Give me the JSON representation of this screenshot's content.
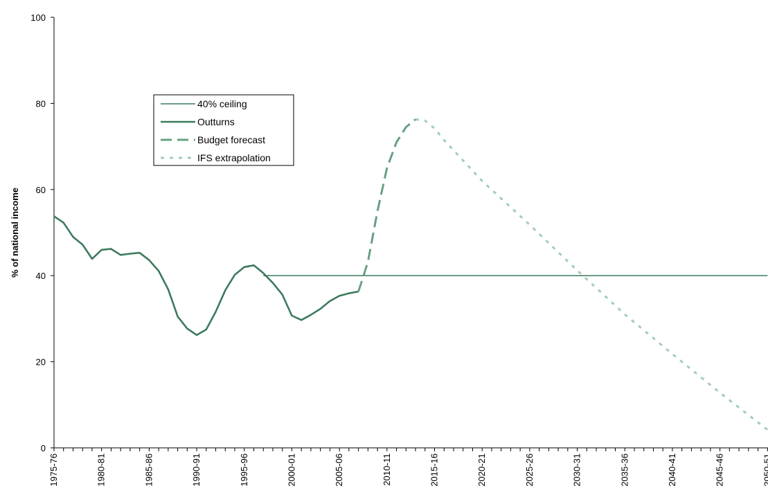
{
  "chart_data": {
    "type": "line",
    "title": "",
    "xlabel": "",
    "ylabel": "% of national income",
    "ylim": [
      0,
      100
    ],
    "yticks": [
      0,
      20,
      40,
      60,
      80,
      100
    ],
    "grid": false,
    "legend_position": "upper-left-inset",
    "x_tick_labels": [
      "1975-76",
      "1980-81",
      "1985-86",
      "1990-91",
      "1995-96",
      "2000-01",
      "2005-06",
      "2010-11",
      "2015-16",
      "2020-21",
      "2025-26",
      "2030-31",
      "2035-36",
      "2040-41",
      "2045-46",
      "2050-51"
    ],
    "x_tick_start_year": 1975,
    "x_tick_step_years": 5,
    "x_range_years": [
      1975,
      2050
    ],
    "series": [
      {
        "name": "40% ceiling",
        "color": "#3c7a5c",
        "style": "thin-solid",
        "points": [
          [
            1997,
            40
          ],
          [
            2050,
            40
          ]
        ]
      },
      {
        "name": "Outturns",
        "color": "#3c7a5c",
        "style": "thick-solid",
        "points": [
          [
            1975,
            53.8
          ],
          [
            1976,
            52.3
          ],
          [
            1977,
            49.0
          ],
          [
            1978,
            47.2
          ],
          [
            1979,
            43.9
          ],
          [
            1980,
            46.0
          ],
          [
            1981,
            46.2
          ],
          [
            1982,
            44.8
          ],
          [
            1983,
            45.1
          ],
          [
            1984,
            45.3
          ],
          [
            1985,
            43.6
          ],
          [
            1986,
            41.1
          ],
          [
            1987,
            36.8
          ],
          [
            1988,
            30.5
          ],
          [
            1989,
            27.7
          ],
          [
            1990,
            26.2
          ],
          [
            1991,
            27.5
          ],
          [
            1992,
            31.6
          ],
          [
            1993,
            36.6
          ],
          [
            1994,
            40.2
          ],
          [
            1995,
            42.0
          ],
          [
            1996,
            42.4
          ],
          [
            1997,
            40.6
          ],
          [
            1998,
            38.3
          ],
          [
            1999,
            35.6
          ],
          [
            2000,
            30.7
          ],
          [
            2001,
            29.7
          ],
          [
            2002,
            30.9
          ],
          [
            2003,
            32.3
          ],
          [
            2004,
            34.1
          ],
          [
            2005,
            35.3
          ],
          [
            2006,
            35.9
          ],
          [
            2007,
            36.3
          ]
        ]
      },
      {
        "name": "Budget forecast",
        "color": "#66a083",
        "style": "long-dash",
        "points": [
          [
            2007,
            36.3
          ],
          [
            2008,
            43.2
          ],
          [
            2009,
            55.0
          ],
          [
            2010,
            65.0
          ],
          [
            2011,
            71.0
          ],
          [
            2012,
            74.5
          ],
          [
            2013,
            76.3
          ]
        ]
      },
      {
        "name": "IFS extrapolation",
        "color": "#a3cdb8",
        "style": "short-dash",
        "points": [
          [
            2013,
            76.3
          ],
          [
            2014,
            76.0
          ],
          [
            2015,
            74.2
          ],
          [
            2016,
            71.5
          ],
          [
            2020,
            62.0
          ],
          [
            2025,
            51.8
          ],
          [
            2030,
            41.2
          ],
          [
            2035,
            31.0
          ],
          [
            2040,
            21.8
          ],
          [
            2045,
            12.8
          ],
          [
            2050,
            4.2
          ]
        ]
      }
    ]
  }
}
